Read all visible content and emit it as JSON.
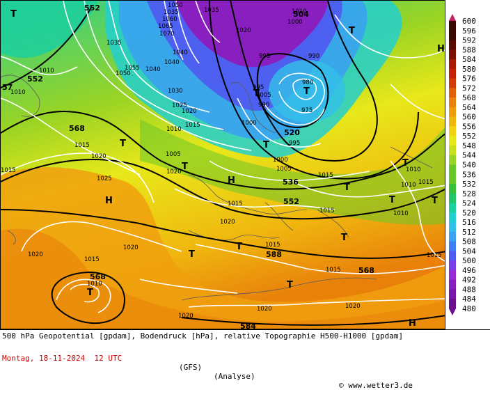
{
  "colors": {
    "scale": [
      "#6b0f8e",
      "#7a16a8",
      "#8a1fc0",
      "#9b2ad6",
      "#7b3ee6",
      "#4f5cf0",
      "#3f7ff3",
      "#3aa2f0",
      "#33c0e8",
      "#22cfcf",
      "#1ccf9e",
      "#22c468",
      "#37c03a",
      "#6ac72a",
      "#9ad424",
      "#c8e01e",
      "#e8e81a",
      "#f2d214",
      "#f0b80f",
      "#ee9c0c",
      "#e8800a",
      "#e06008",
      "#d43c06",
      "#c42404",
      "#a81a02",
      "#7a1002",
      "#5a0c01",
      "#3a0801"
    ],
    "isobar": "#ffffff",
    "geopotential": "#000000",
    "title": "#000000",
    "date": "#cc0000"
  },
  "legend": {
    "values": [
      "600",
      "596",
      "592",
      "588",
      "584",
      "580",
      "576",
      "572",
      "568",
      "564",
      "560",
      "556",
      "552",
      "548",
      "544",
      "540",
      "536",
      "532",
      "528",
      "524",
      "520",
      "516",
      "512",
      "508",
      "504",
      "500",
      "496",
      "492",
      "488",
      "484",
      "480"
    ]
  },
  "map": {
    "geopotential_labels": [
      "552",
      "504",
      "552",
      "568",
      "520",
      "536",
      "552",
      "568",
      "588",
      "568",
      "584",
      "57"
    ],
    "pressure_labels": [
      "1050",
      "1035",
      "1035",
      "1060",
      "1065",
      "1070",
      "1035",
      "1040",
      "1050",
      "1055",
      "1040",
      "1040",
      "1030",
      "1025",
      "1020",
      "1015",
      "1010",
      "1005",
      "1000",
      "995",
      "990",
      "980",
      "975",
      "990",
      "995",
      "1000",
      "1005",
      "1010",
      "1015",
      "1010",
      "1015",
      "1020",
      "1025",
      "1015",
      "1010",
      "1015",
      "1020",
      "1015",
      "1020",
      "1015",
      "1010",
      "1010",
      "1015",
      "1020",
      "1020",
      "1020",
      "1020",
      "1015",
      "1010",
      "1015",
      "1020",
      "1000",
      "995",
      "1005",
      "1010",
      "1020",
      "1015"
    ],
    "high_markers": [
      "H",
      "H",
      "H",
      "H"
    ],
    "low_markers": [
      "T",
      "T",
      "T",
      "T",
      "T",
      "T",
      "T",
      "T",
      "T",
      "T",
      "T",
      "T",
      "T",
      "T",
      "T",
      "T"
    ]
  },
  "footer": {
    "title": "500 hPa Geopotential [gpdam], Bodendruck [hPa], relative Topographie H500-H1000 [gpdam]",
    "date": "Montag, 18-11-2024  12 UTC",
    "model": "(GFS)",
    "run": "(Analyse)",
    "copyright": "© www.wetter3.de"
  }
}
